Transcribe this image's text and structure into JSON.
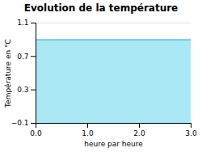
{
  "chart_data": {
    "type": "area",
    "title": "Evolution de la température",
    "x_label": "heure par heure",
    "y_label": "Température en °C",
    "x": [
      0,
      3
    ],
    "series": [
      {
        "type": "area",
        "color": "#aae8f5",
        "values": [
          0.9,
          0.9
        ]
      },
      {
        "type": "line",
        "color": "#55bbdd",
        "values": [
          0.9,
          0.9
        ]
      }
    ],
    "xlim": [
      0,
      3
    ],
    "xticks": [
      0,
      1,
      2,
      3
    ],
    "ylim": [
      -0.1,
      1.1
    ],
    "yticks": [
      -0.1,
      0.3,
      0.7,
      1.1
    ],
    "grid": true
  }
}
